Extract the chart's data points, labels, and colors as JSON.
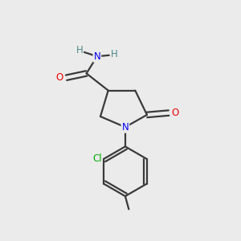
{
  "bg_color": "#ebebeb",
  "bond_color": "#3a3a3a",
  "bond_width": 1.6,
  "atom_colors": {
    "N": "#0000ee",
    "O": "#ee0000",
    "Cl": "#00aa00",
    "C": "#3a3a3a",
    "H": "#4a8888"
  },
  "font_size_atom": 8.5,
  "font_size_small": 7.5,
  "xlim": [
    0,
    10
  ],
  "ylim": [
    0,
    10
  ]
}
